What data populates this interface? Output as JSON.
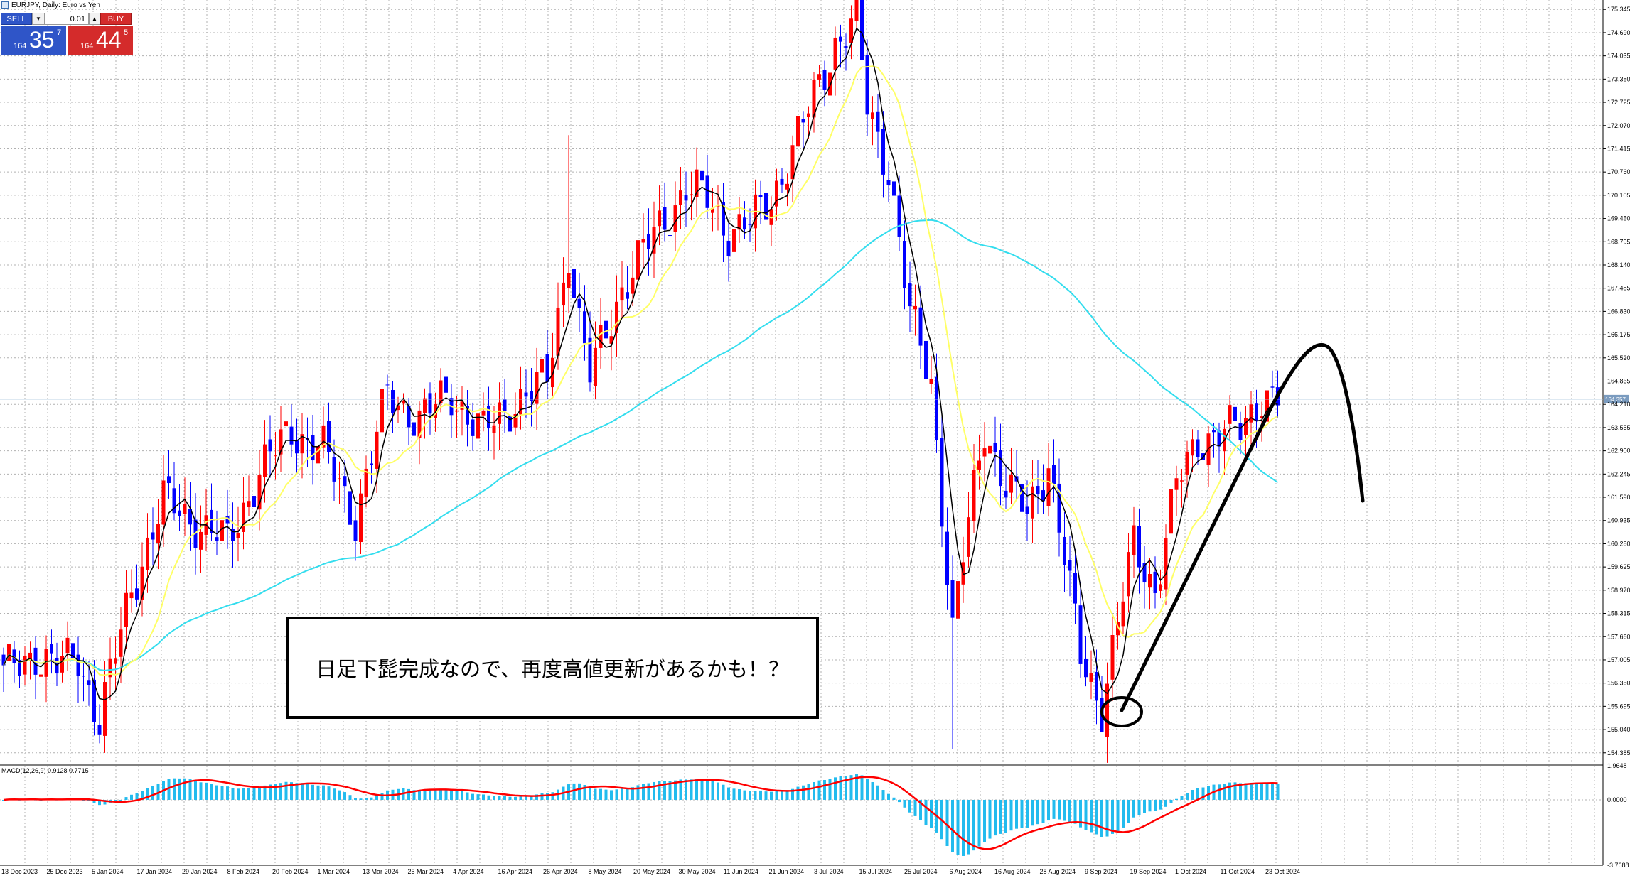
{
  "window": {
    "title": "EURJPY, Daily:  Euro vs Yen"
  },
  "trade_panel": {
    "sell_label": "SELL",
    "buy_label": "BUY",
    "volume": "0.01",
    "sell_price": {
      "prefix": "164",
      "big": "35",
      "sup": "7"
    },
    "buy_price": {
      "prefix": "164",
      "big": "44",
      "sup": "5"
    }
  },
  "annotation": "日足下髭完成なので、再度高値更新があるかも！？",
  "colors": {
    "bull_candle": "#ff0000",
    "bear_candle": "#0000ff",
    "ma_fast": "#000000",
    "ma_mid": "#ffff66",
    "ma_slow": "#33ddee",
    "macd_hist": "#22bbee",
    "macd_signal": "#ff0000",
    "grid": "#b0b0b0",
    "current_price_line": "#a9c4dc"
  },
  "icons": [
    "chart-window-icon",
    "dropdown-arrow-icon",
    "stepper-up-icon"
  ],
  "chart_data": [
    {
      "type": "candlestick",
      "title": "EURJPY, Daily:  Euro vs Yen",
      "ylim": [
        154.1,
        175.45
      ],
      "current_price": "164.357",
      "y_ticks": [
        "175.345",
        "174.690",
        "174.035",
        "173.380",
        "172.725",
        "172.070",
        "171.415",
        "170.760",
        "170.105",
        "169.450",
        "168.795",
        "168.140",
        "167.485",
        "166.830",
        "166.175",
        "165.520",
        "164.865",
        "164.210",
        "163.555",
        "162.900",
        "162.245",
        "161.590",
        "160.935",
        "160.280",
        "159.625",
        "158.970",
        "158.315",
        "157.660",
        "157.005",
        "156.350",
        "155.695",
        "155.040",
        "154.385"
      ],
      "x_ticks": [
        "13 Dec 2023",
        "25 Dec 2023",
        "5 Jan 2024",
        "17 Jan 2024",
        "29 Jan 2024",
        "8 Feb 2024",
        "20 Feb 2024",
        "1 Mar 2024",
        "13 Mar 2024",
        "25 Mar 2024",
        "4 Apr 2024",
        "16 Apr 2024",
        "26 Apr 2024",
        "8 May 2024",
        "20 May 2024",
        "30 May 2024",
        "11 Jun 2024",
        "21 Jun 2024",
        "3 Jul 2024",
        "15 Jul 2024",
        "25 Jul 2024",
        "6 Aug 2024",
        "16 Aug 2024",
        "28 Aug 2024",
        "9 Sep 2024",
        "19 Sep 2024",
        "1 Oct 2024",
        "11 Oct 2024",
        "23 Oct 2024"
      ],
      "close_anchors": [
        [
          0,
          156.6
        ],
        [
          6,
          157.2
        ],
        [
          10,
          156.8
        ],
        [
          14,
          157.1
        ],
        [
          18,
          155.3
        ],
        [
          24,
          159.0
        ],
        [
          30,
          161.5
        ],
        [
          36,
          160.9
        ],
        [
          42,
          160.3
        ],
        [
          48,
          162.3
        ],
        [
          54,
          163.5
        ],
        [
          60,
          162.9
        ],
        [
          66,
          161.0
        ],
        [
          72,
          164.5
        ],
        [
          78,
          163.8
        ],
        [
          84,
          164.5
        ],
        [
          90,
          163.4
        ],
        [
          96,
          164.3
        ],
        [
          102,
          164.9
        ],
        [
          106,
          168.6
        ],
        [
          108,
          166.5
        ],
        [
          110,
          165.0
        ],
        [
          116,
          167.5
        ],
        [
          122,
          169.0
        ],
        [
          128,
          170.3
        ],
        [
          132,
          170.0
        ],
        [
          136,
          169.1
        ],
        [
          140,
          169.3
        ],
        [
          144,
          170.0
        ],
        [
          150,
          172.1
        ],
        [
          156,
          174.4
        ],
        [
          160,
          175.0
        ],
        [
          162,
          172.6
        ],
        [
          166,
          170.9
        ],
        [
          170,
          166.7
        ],
        [
          174,
          164.9
        ],
        [
          178,
          157.8
        ],
        [
          180,
          159.9
        ],
        [
          184,
          163.6
        ],
        [
          188,
          161.9
        ],
        [
          192,
          161.1
        ],
        [
          196,
          162.6
        ],
        [
          202,
          157.1
        ],
        [
          206,
          155.7
        ],
        [
          212,
          160.3
        ],
        [
          216,
          159.0
        ],
        [
          220,
          161.9
        ],
        [
          224,
          163.2
        ],
        [
          228,
          163.4
        ],
        [
          232,
          163.5
        ],
        [
          236,
          164.5
        ],
        [
          238,
          164.36
        ]
      ],
      "ma_period": {
        "fast": 5,
        "mid": 13,
        "slow": 75
      }
    },
    {
      "type": "bar",
      "title": "MACD(12,26,9) 0.9128 0.7715",
      "ylim": [
        -3.7688,
        1.9648
      ],
      "y_ticks": [
        "1.9648",
        "0.0000",
        "-3.7688"
      ],
      "series": [
        {
          "name": "MACD",
          "values": []
        },
        {
          "name": "Signal",
          "values": []
        }
      ]
    }
  ]
}
